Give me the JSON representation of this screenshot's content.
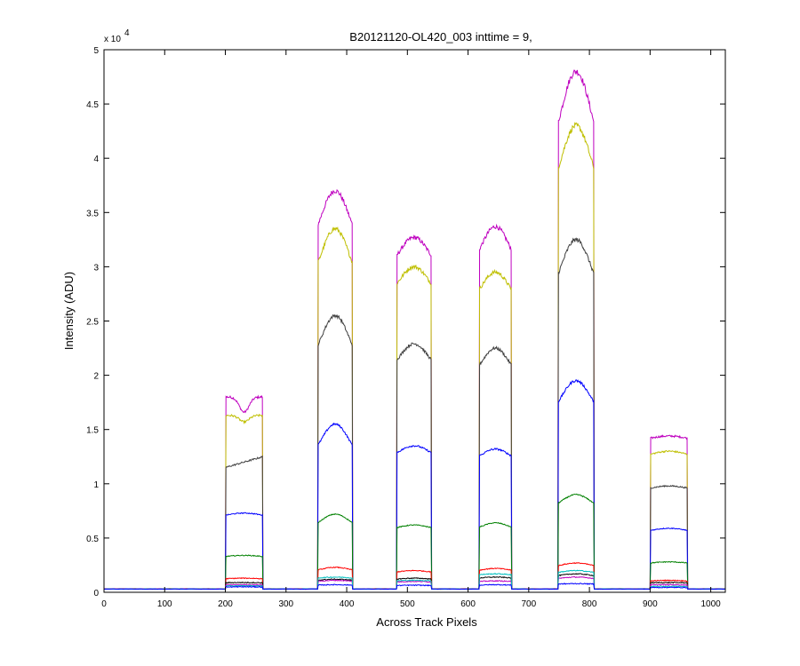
{
  "chart_data": {
    "type": "line",
    "title": "B20121120-OL420_003 inttime = 9,",
    "xlabel": "Across Track Pixels",
    "ylabel": "Intensity (ADU)",
    "y_exponent_label": "x 10",
    "y_exponent": "4",
    "xlim": [
      0,
      1024
    ],
    "ylim": [
      0,
      50000
    ],
    "xticks": [
      0,
      100,
      200,
      300,
      400,
      500,
      600,
      700,
      800,
      900,
      1000
    ],
    "yticks": [
      0,
      0.5,
      1,
      1.5,
      2,
      2.5,
      3,
      3.5,
      4,
      4.5,
      5
    ],
    "grid": false,
    "baseline": 300,
    "segments": [
      {
        "start": 200,
        "end": 262
      },
      {
        "start": 352,
        "end": 410
      },
      {
        "start": 482,
        "end": 540
      },
      {
        "start": 618,
        "end": 672
      },
      {
        "start": 748,
        "end": 808
      },
      {
        "start": 900,
        "end": 962
      }
    ],
    "series": [
      {
        "color": "#bf00bf",
        "levels": [
          {
            "shape": "dip",
            "peak": 18000,
            "dip": 16600
          },
          {
            "shape": "arch",
            "peak": 37000,
            "edge": 33000
          },
          {
            "shape": "arch",
            "peak": 32700,
            "edge": 30600
          },
          {
            "shape": "arch",
            "peak": 33700,
            "edge": 31000
          },
          {
            "shape": "arch",
            "peak": 48000,
            "edge": 42000
          },
          {
            "shape": "flat",
            "peak": 14400,
            "edge": 14200
          }
        ]
      },
      {
        "color": "#bfbf00",
        "levels": [
          {
            "shape": "dip",
            "peak": 16300,
            "dip": 15700
          },
          {
            "shape": "arch",
            "peak": 33500,
            "edge": 29500
          },
          {
            "shape": "arch",
            "peak": 30000,
            "edge": 28000
          },
          {
            "shape": "arch",
            "peak": 29500,
            "edge": 27500
          },
          {
            "shape": "arch",
            "peak": 43000,
            "edge": 38000
          },
          {
            "shape": "flat",
            "peak": 13000,
            "edge": 12700
          }
        ]
      },
      {
        "color": "#3f3f3f",
        "levels": [
          {
            "shape": "rise",
            "peak": 12500,
            "dip": 11500
          },
          {
            "shape": "arch",
            "peak": 25500,
            "edge": 22000
          },
          {
            "shape": "arch",
            "peak": 22900,
            "edge": 21000
          },
          {
            "shape": "arch",
            "peak": 22500,
            "edge": 20500
          },
          {
            "shape": "arch",
            "peak": 32500,
            "edge": 28500
          },
          {
            "shape": "flat",
            "peak": 9800,
            "edge": 9600
          }
        ]
      },
      {
        "color": "#0000ff",
        "levels": [
          {
            "shape": "flat",
            "peak": 7300,
            "edge": 7100
          },
          {
            "shape": "arch",
            "peak": 15500,
            "edge": 13000
          },
          {
            "shape": "arch",
            "peak": 13500,
            "edge": 12700
          },
          {
            "shape": "arch",
            "peak": 13200,
            "edge": 12400
          },
          {
            "shape": "arch",
            "peak": 19500,
            "edge": 17000
          },
          {
            "shape": "flat",
            "peak": 5900,
            "edge": 5700
          }
        ]
      },
      {
        "color": "#008000",
        "levels": [
          {
            "shape": "flat",
            "peak": 3400,
            "edge": 3300
          },
          {
            "shape": "arch",
            "peak": 7200,
            "edge": 6200
          },
          {
            "shape": "arch",
            "peak": 6200,
            "edge": 5900
          },
          {
            "shape": "arch",
            "peak": 6400,
            "edge": 5900
          },
          {
            "shape": "arch",
            "peak": 9000,
            "edge": 8000
          },
          {
            "shape": "flat",
            "peak": 2800,
            "edge": 2700
          }
        ]
      },
      {
        "color": "#ff0000",
        "levels": [
          {
            "shape": "flat",
            "peak": 1300,
            "edge": 1250
          },
          {
            "shape": "arch",
            "peak": 2300,
            "edge": 2000
          },
          {
            "shape": "arch",
            "peak": 2000,
            "edge": 1850
          },
          {
            "shape": "arch",
            "peak": 2200,
            "edge": 2000
          },
          {
            "shape": "arch",
            "peak": 2700,
            "edge": 2400
          },
          {
            "shape": "flat",
            "peak": 1100,
            "edge": 1050
          }
        ]
      },
      {
        "color": "#000000",
        "levels": [
          {
            "shape": "flat",
            "peak": 900,
            "edge": 880
          },
          {
            "shape": "arch",
            "peak": 1200,
            "edge": 1100
          },
          {
            "shape": "arch",
            "peak": 1300,
            "edge": 1200
          },
          {
            "shape": "arch",
            "peak": 1400,
            "edge": 1300
          },
          {
            "shape": "arch",
            "peak": 1700,
            "edge": 1500
          },
          {
            "shape": "flat",
            "peak": 900,
            "edge": 880
          }
        ]
      },
      {
        "color": "#bf00bf",
        "levels": [
          {
            "shape": "flat",
            "peak": 700,
            "edge": 680
          },
          {
            "shape": "arch",
            "peak": 1100,
            "edge": 1000
          },
          {
            "shape": "arch",
            "peak": 1000,
            "edge": 950
          },
          {
            "shape": "arch",
            "peak": 1050,
            "edge": 980
          },
          {
            "shape": "arch",
            "peak": 1400,
            "edge": 1250
          },
          {
            "shape": "flat",
            "peak": 700,
            "edge": 680
          }
        ]
      },
      {
        "color": "#00bfbf",
        "levels": [
          {
            "shape": "flat",
            "peak": 600,
            "edge": 580
          },
          {
            "shape": "arch",
            "peak": 1400,
            "edge": 1300
          },
          {
            "shape": "arch",
            "peak": 1100,
            "edge": 1050
          },
          {
            "shape": "arch",
            "peak": 1700,
            "edge": 1600
          },
          {
            "shape": "arch",
            "peak": 2000,
            "edge": 1800
          },
          {
            "shape": "flat",
            "peak": 550,
            "edge": 530
          }
        ]
      },
      {
        "color": "#0000ff",
        "levels": [
          {
            "shape": "flat",
            "peak": 500,
            "edge": 490
          },
          {
            "shape": "arch",
            "peak": 700,
            "edge": 650
          },
          {
            "shape": "arch",
            "peak": 650,
            "edge": 620
          },
          {
            "shape": "arch",
            "peak": 700,
            "edge": 650
          },
          {
            "shape": "arch",
            "peak": 800,
            "edge": 750
          },
          {
            "shape": "flat",
            "peak": 450,
            "edge": 440
          }
        ]
      }
    ]
  }
}
